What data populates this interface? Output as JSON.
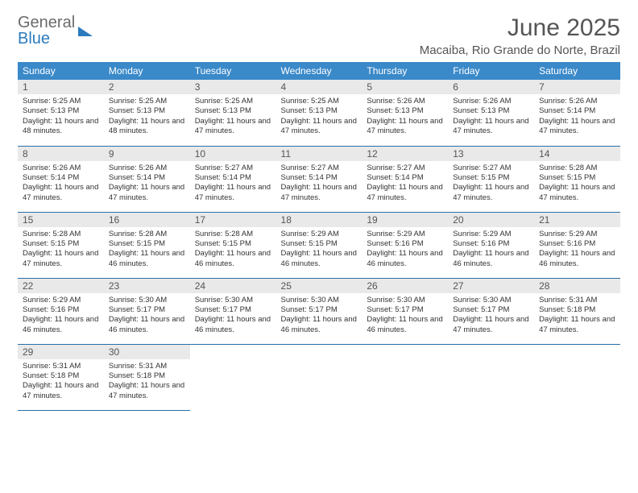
{
  "logo": {
    "part1": "General",
    "part2": "Blue"
  },
  "title": "June 2025",
  "location": "Macaiba, Rio Grande do Norte, Brazil",
  "colors": {
    "header_bg": "#3a89c9",
    "header_text": "#ffffff",
    "daynum_bg": "#e9e9e9",
    "row_border": "#2b6fa8",
    "logo_gray": "#6b6b6b",
    "logo_blue": "#2b7bbd"
  },
  "weekdays": [
    "Sunday",
    "Monday",
    "Tuesday",
    "Wednesday",
    "Thursday",
    "Friday",
    "Saturday"
  ],
  "days": [
    {
      "n": 1,
      "sunrise": "5:25 AM",
      "sunset": "5:13 PM",
      "daylight": "11 hours and 48 minutes."
    },
    {
      "n": 2,
      "sunrise": "5:25 AM",
      "sunset": "5:13 PM",
      "daylight": "11 hours and 48 minutes."
    },
    {
      "n": 3,
      "sunrise": "5:25 AM",
      "sunset": "5:13 PM",
      "daylight": "11 hours and 47 minutes."
    },
    {
      "n": 4,
      "sunrise": "5:25 AM",
      "sunset": "5:13 PM",
      "daylight": "11 hours and 47 minutes."
    },
    {
      "n": 5,
      "sunrise": "5:26 AM",
      "sunset": "5:13 PM",
      "daylight": "11 hours and 47 minutes."
    },
    {
      "n": 6,
      "sunrise": "5:26 AM",
      "sunset": "5:13 PM",
      "daylight": "11 hours and 47 minutes."
    },
    {
      "n": 7,
      "sunrise": "5:26 AM",
      "sunset": "5:14 PM",
      "daylight": "11 hours and 47 minutes."
    },
    {
      "n": 8,
      "sunrise": "5:26 AM",
      "sunset": "5:14 PM",
      "daylight": "11 hours and 47 minutes."
    },
    {
      "n": 9,
      "sunrise": "5:26 AM",
      "sunset": "5:14 PM",
      "daylight": "11 hours and 47 minutes."
    },
    {
      "n": 10,
      "sunrise": "5:27 AM",
      "sunset": "5:14 PM",
      "daylight": "11 hours and 47 minutes."
    },
    {
      "n": 11,
      "sunrise": "5:27 AM",
      "sunset": "5:14 PM",
      "daylight": "11 hours and 47 minutes."
    },
    {
      "n": 12,
      "sunrise": "5:27 AM",
      "sunset": "5:14 PM",
      "daylight": "11 hours and 47 minutes."
    },
    {
      "n": 13,
      "sunrise": "5:27 AM",
      "sunset": "5:15 PM",
      "daylight": "11 hours and 47 minutes."
    },
    {
      "n": 14,
      "sunrise": "5:28 AM",
      "sunset": "5:15 PM",
      "daylight": "11 hours and 47 minutes."
    },
    {
      "n": 15,
      "sunrise": "5:28 AM",
      "sunset": "5:15 PM",
      "daylight": "11 hours and 47 minutes."
    },
    {
      "n": 16,
      "sunrise": "5:28 AM",
      "sunset": "5:15 PM",
      "daylight": "11 hours and 46 minutes."
    },
    {
      "n": 17,
      "sunrise": "5:28 AM",
      "sunset": "5:15 PM",
      "daylight": "11 hours and 46 minutes."
    },
    {
      "n": 18,
      "sunrise": "5:29 AM",
      "sunset": "5:15 PM",
      "daylight": "11 hours and 46 minutes."
    },
    {
      "n": 19,
      "sunrise": "5:29 AM",
      "sunset": "5:16 PM",
      "daylight": "11 hours and 46 minutes."
    },
    {
      "n": 20,
      "sunrise": "5:29 AM",
      "sunset": "5:16 PM",
      "daylight": "11 hours and 46 minutes."
    },
    {
      "n": 21,
      "sunrise": "5:29 AM",
      "sunset": "5:16 PM",
      "daylight": "11 hours and 46 minutes."
    },
    {
      "n": 22,
      "sunrise": "5:29 AM",
      "sunset": "5:16 PM",
      "daylight": "11 hours and 46 minutes."
    },
    {
      "n": 23,
      "sunrise": "5:30 AM",
      "sunset": "5:17 PM",
      "daylight": "11 hours and 46 minutes."
    },
    {
      "n": 24,
      "sunrise": "5:30 AM",
      "sunset": "5:17 PM",
      "daylight": "11 hours and 46 minutes."
    },
    {
      "n": 25,
      "sunrise": "5:30 AM",
      "sunset": "5:17 PM",
      "daylight": "11 hours and 46 minutes."
    },
    {
      "n": 26,
      "sunrise": "5:30 AM",
      "sunset": "5:17 PM",
      "daylight": "11 hours and 46 minutes."
    },
    {
      "n": 27,
      "sunrise": "5:30 AM",
      "sunset": "5:17 PM",
      "daylight": "11 hours and 47 minutes."
    },
    {
      "n": 28,
      "sunrise": "5:31 AM",
      "sunset": "5:18 PM",
      "daylight": "11 hours and 47 minutes."
    },
    {
      "n": 29,
      "sunrise": "5:31 AM",
      "sunset": "5:18 PM",
      "daylight": "11 hours and 47 minutes."
    },
    {
      "n": 30,
      "sunrise": "5:31 AM",
      "sunset": "5:18 PM",
      "daylight": "11 hours and 47 minutes."
    }
  ],
  "labels": {
    "sunrise": "Sunrise:",
    "sunset": "Sunset:",
    "daylight": "Daylight:"
  },
  "layout": {
    "first_day_column": 0,
    "cells_per_row": 7,
    "cell_font_size_pt": 7,
    "header_font_size_pt": 9,
    "title_font_size_pt": 22
  }
}
